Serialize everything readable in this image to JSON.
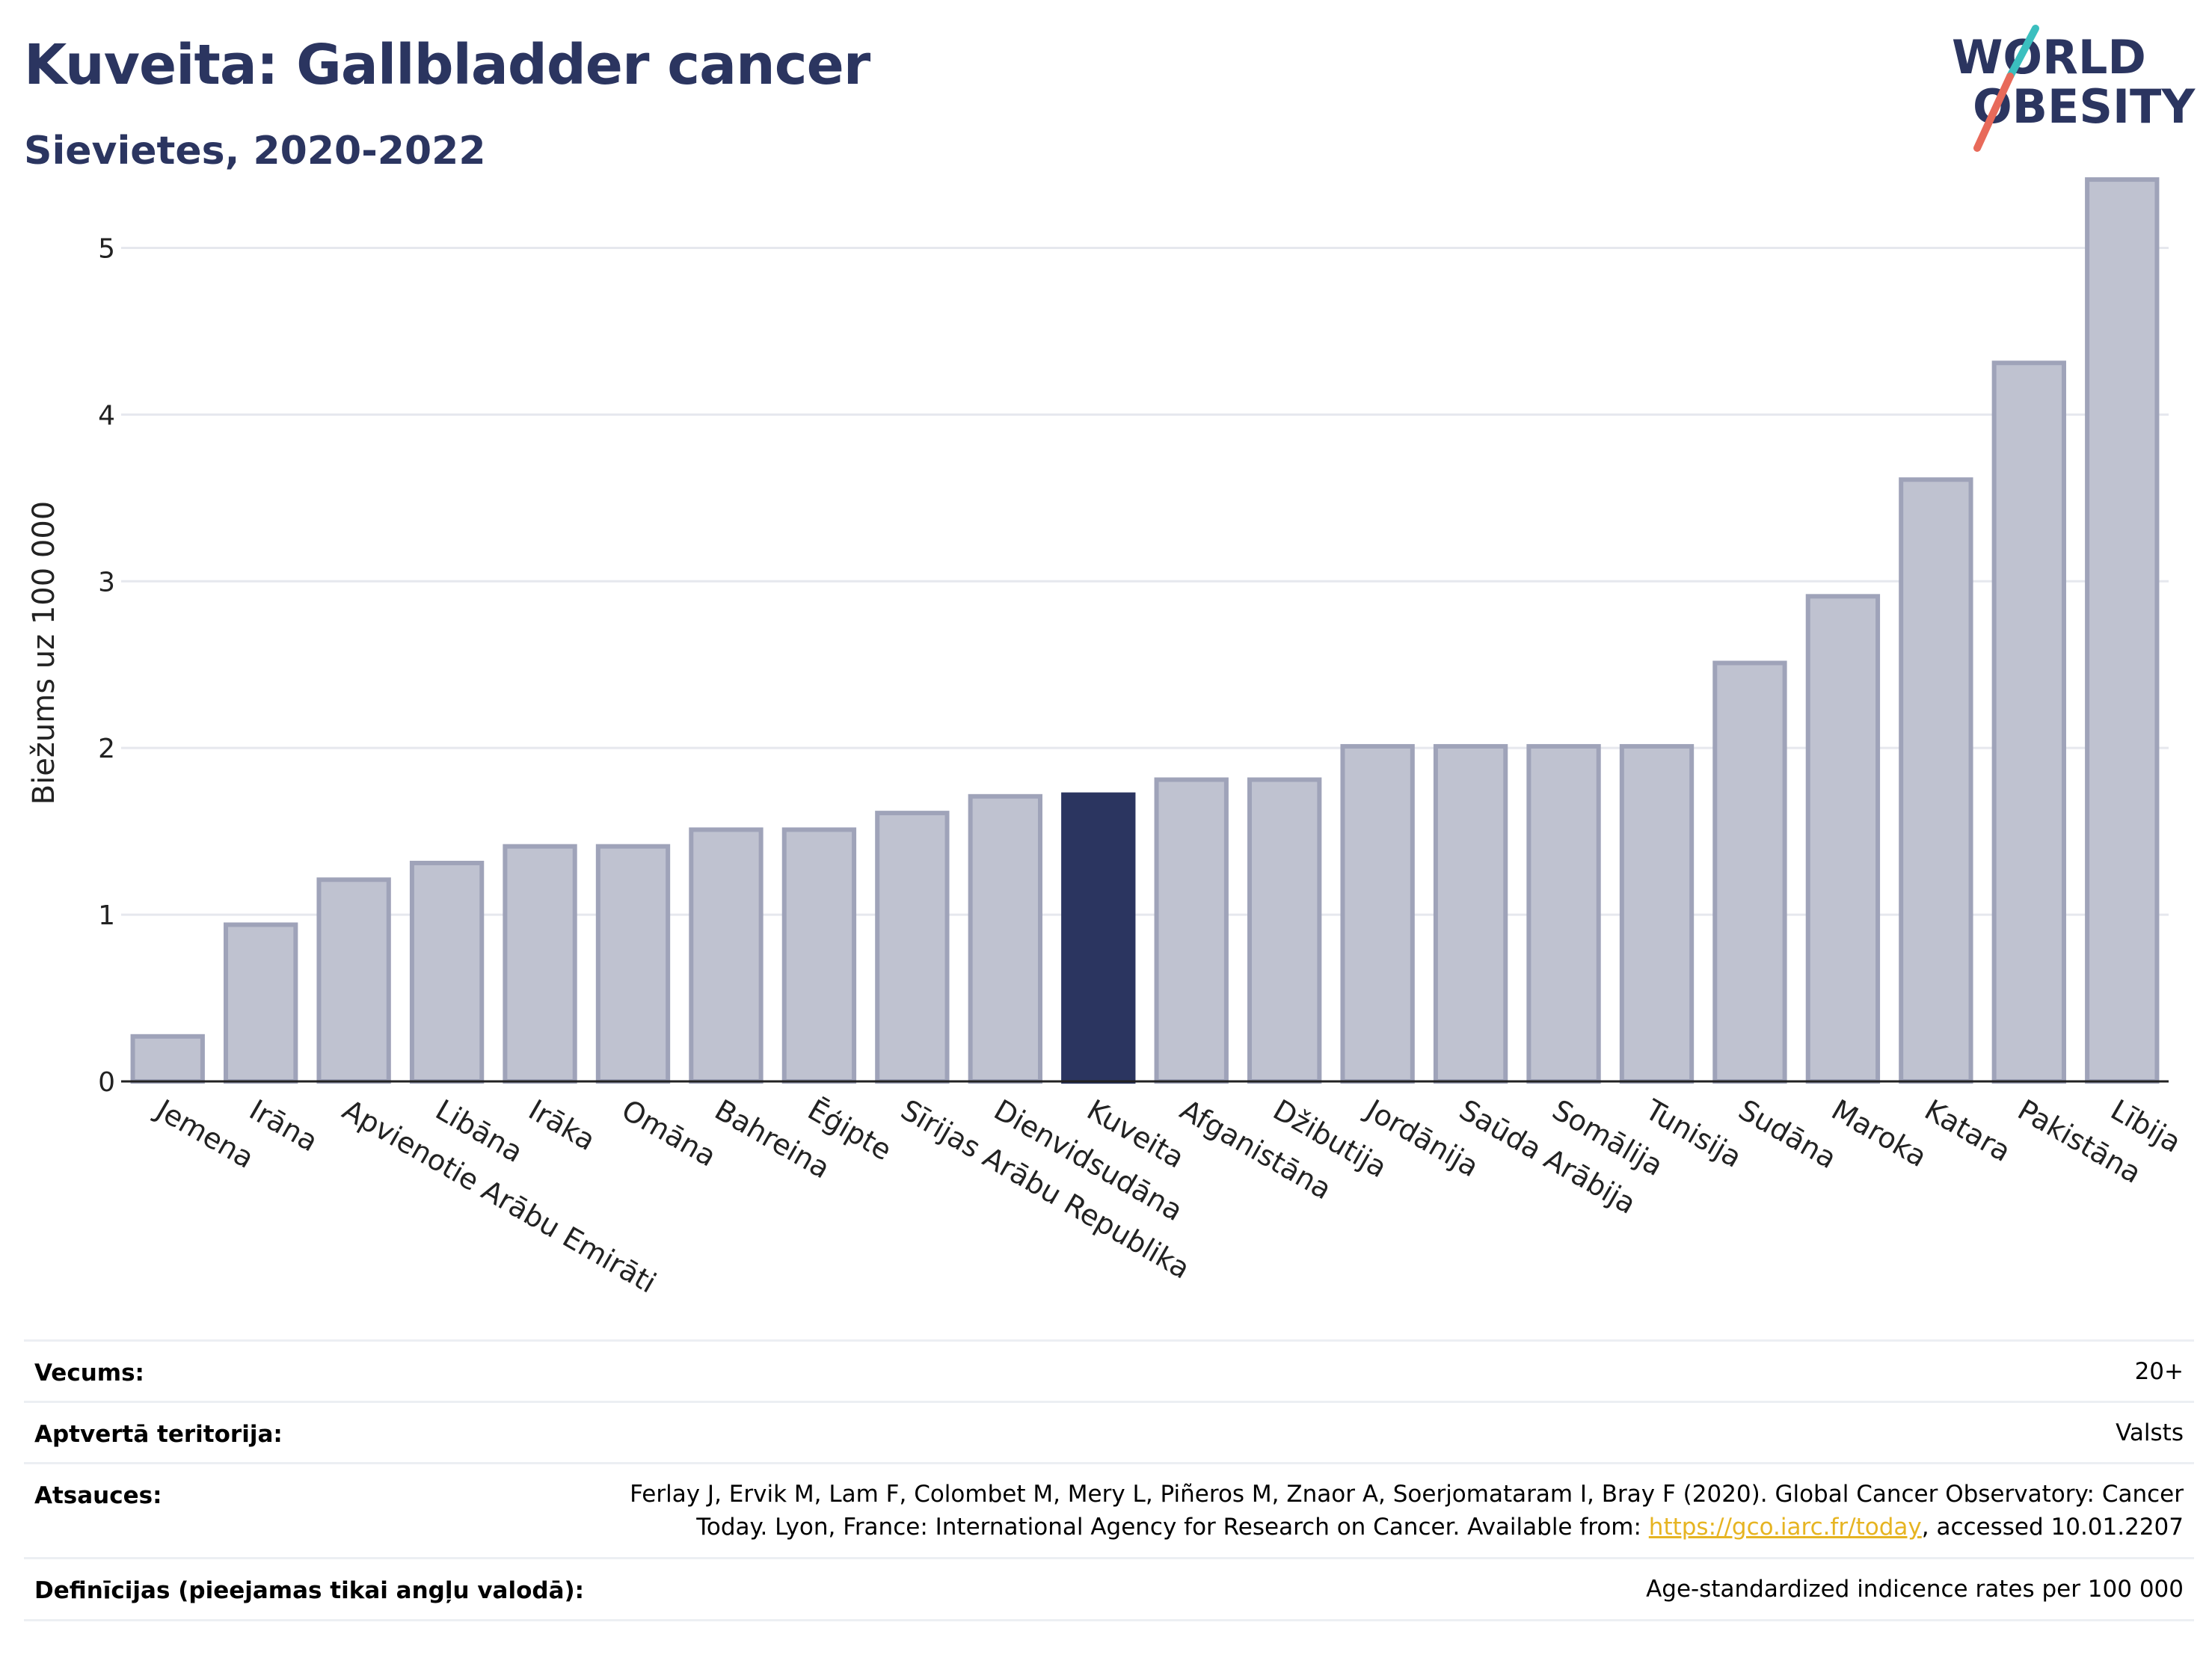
{
  "header": {
    "title": "Kuveita: Gallbladder cancer",
    "subtitle": "Sievietes, 2020-2022"
  },
  "logo": {
    "line1": "WORLD",
    "line2": "OBESITY"
  },
  "colors": {
    "highlight_bar": "#2b3560",
    "bar_fill": "#bfc2d0",
    "bar_stroke": "#9fa3b9",
    "title": "#2b3560",
    "link": "#e6b422",
    "logo_teal": "#3bbfbf",
    "logo_coral": "#e86a5a"
  },
  "chart_data": {
    "type": "bar",
    "ylabel": "Biežums uz 100 000",
    "xlabel": "",
    "ylim": [
      0,
      5.5
    ],
    "yticks": [
      0,
      1,
      2,
      3,
      4,
      5
    ],
    "grid": true,
    "highlight": "Kuveita",
    "categories": [
      "Jemena",
      "Irāna",
      "Apvienotie Arābu Emirāti",
      "Libāna",
      "Irāka",
      "Omāna",
      "Bahreina",
      "Ēģipte",
      "Sīrijas Arābu Republika",
      "Dienvidsudāna",
      "Kuveita",
      "Afganistāna",
      "Džibutija",
      "Jordānija",
      "Saūda Arābija",
      "Somālija",
      "Tunisija",
      "Sudāna",
      "Maroka",
      "Katara",
      "Pakistāna",
      "Lībija"
    ],
    "values": [
      0.27,
      0.94,
      1.21,
      1.31,
      1.41,
      1.41,
      1.51,
      1.51,
      1.61,
      1.71,
      1.72,
      1.81,
      1.81,
      2.01,
      2.01,
      2.01,
      2.01,
      2.51,
      2.91,
      3.61,
      4.31,
      5.41
    ]
  },
  "meta": {
    "age_label": "Vecums:",
    "age_value": "20+",
    "coverage_label": "Aptvertā teritorija:",
    "coverage_value": "Valsts",
    "refs_label": "Atsauces:",
    "refs_line1": "Ferlay J, Ervik M, Lam F, Colombet M, Mery L, Piñeros M, Znaor A, Soerjomataram I, Bray F (2020). Global Cancer Observatory: Cancer",
    "refs_line2_pre": "Today. Lyon, France: International Agency for Research on Cancer. Available from: ",
    "refs_link": "https://gco.iarc.fr/today",
    "refs_line2_post": ", accessed 10.01.2207",
    "defs_label": "Definīcijas (pieejamas tikai angļu valodā):",
    "defs_value": "Age-standardized indicence rates per 100 000"
  }
}
